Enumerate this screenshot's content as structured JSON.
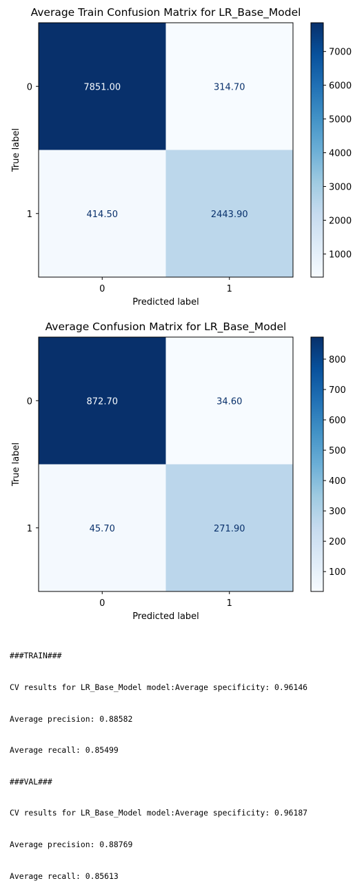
{
  "chart_data": [
    {
      "type": "heatmap",
      "title": "Average Train Confusion Matrix for LR_Base_Model",
      "xlabel": "Predicted label",
      "ylabel": "True label",
      "x_ticks": [
        "0",
        "1"
      ],
      "y_ticks": [
        "0",
        "1"
      ],
      "values": [
        [
          7851.0,
          314.7
        ],
        [
          414.5,
          2443.9
        ]
      ],
      "value_labels": [
        [
          "7851.00",
          "314.70"
        ],
        [
          "414.50",
          "2443.90"
        ]
      ],
      "colormap": "Blues",
      "colorbar_ticks": [
        "1000",
        "2000",
        "3000",
        "4000",
        "5000",
        "6000",
        "7000"
      ],
      "colorbar_tick_values": [
        1000,
        2000,
        3000,
        4000,
        5000,
        6000,
        7000
      ],
      "colorbar_range": [
        314.7,
        7851.0
      ],
      "grid": false
    },
    {
      "type": "heatmap",
      "title": "Average Confusion Matrix for LR_Base_Model",
      "xlabel": "Predicted label",
      "ylabel": "True label",
      "x_ticks": [
        "0",
        "1"
      ],
      "y_ticks": [
        "0",
        "1"
      ],
      "values": [
        [
          872.7,
          34.6
        ],
        [
          45.7,
          271.9
        ]
      ],
      "value_labels": [
        [
          "872.70",
          "34.60"
        ],
        [
          "45.70",
          "271.90"
        ]
      ],
      "colormap": "Blues",
      "colorbar_ticks": [
        "100",
        "200",
        "300",
        "400",
        "500",
        "600",
        "700",
        "800"
      ],
      "colorbar_tick_values": [
        100,
        200,
        300,
        400,
        500,
        600,
        700,
        800
      ],
      "colorbar_range": [
        34.6,
        872.7
      ],
      "grid": false
    }
  ],
  "output_lines": [
    "###TRAIN###",
    "CV results for LR_Base_Model model:Average specificity: 0.96146",
    "Average precision: 0.88582",
    "Average recall: 0.85499",
    "###VAL###",
    "CV results for LR_Base_Model model:Average specificity: 0.96187",
    "Average precision: 0.88769",
    "Average recall: 0.85613"
  ],
  "colors": {
    "light_text": "#f7fbff",
    "dark_text": "#08306b",
    "axis": "#000000"
  }
}
